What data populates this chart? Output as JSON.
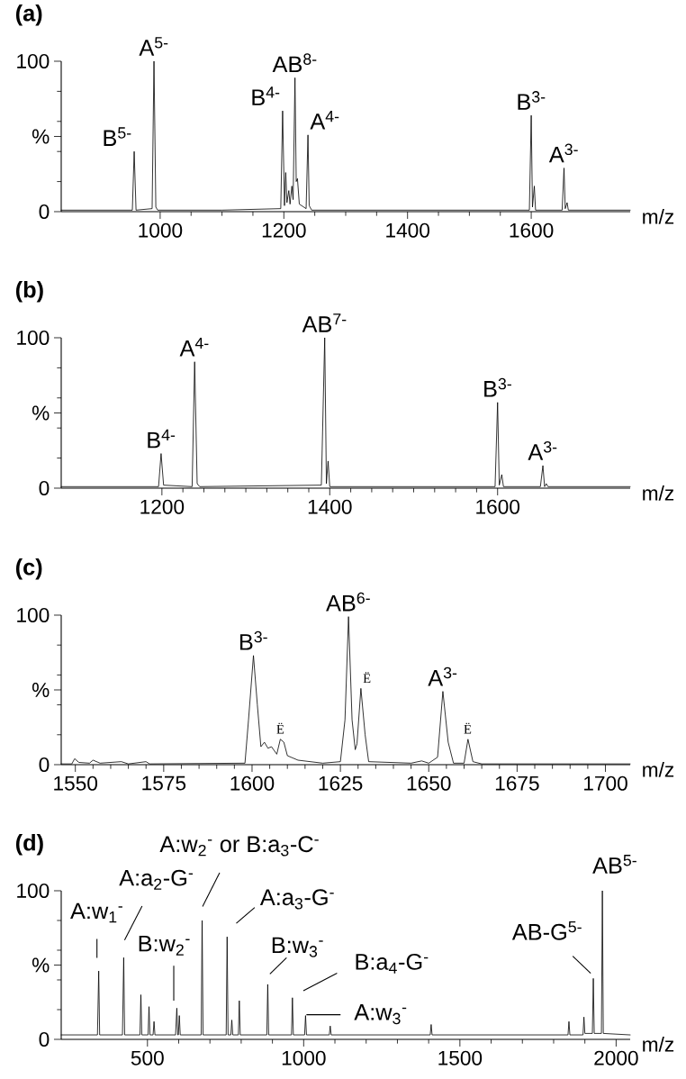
{
  "chart_data": [
    {
      "type": "line",
      "title": "(a)",
      "xlabel": "m/z",
      "color": "#000000",
      "x": [
        840,
        900,
        955,
        958,
        961,
        987,
        990,
        993,
        996,
        1100,
        1195,
        1198,
        1201,
        1203,
        1205,
        1208,
        1210,
        1213,
        1215,
        1218,
        1220,
        1222,
        1225,
        1236,
        1239,
        1241,
        1245,
        1400,
        1597,
        1600,
        1602,
        1605,
        1607,
        1650,
        1653,
        1655,
        1658,
        1660,
        1760
      ],
      "values": [
        1,
        1,
        1,
        40,
        1,
        2,
        100,
        3,
        1,
        1,
        2,
        67,
        4,
        26,
        6,
        14,
        5,
        17,
        8,
        89,
        20,
        22,
        5,
        2,
        51,
        4,
        1,
        1,
        1,
        64,
        3,
        17,
        1,
        1,
        29,
        2,
        6,
        1,
        1
      ],
      "xlim": [
        840,
        1760
      ],
      "ylim": [
        0,
        100
      ],
      "xticks": [
        1000,
        1200,
        1400,
        1600
      ],
      "yticks": [
        0,
        100
      ],
      "ylabel": "%",
      "annotations": [
        {
          "text": "B$^{5-}$",
          "x": 958,
          "y": 40
        },
        {
          "text": "A$^{5-}$",
          "x": 990,
          "y": 100
        },
        {
          "text": "B$^{4-}$",
          "x": 1198,
          "y": 67
        },
        {
          "text": "AB$^{8-}$",
          "x": 1218,
          "y": 89
        },
        {
          "text": "A$^{4-}$",
          "x": 1239,
          "y": 51
        },
        {
          "text": "B$^{3-}$",
          "x": 1600,
          "y": 64
        },
        {
          "text": "A$^{3-}$",
          "x": 1653,
          "y": 29
        }
      ]
    },
    {
      "type": "line",
      "title": "(b)",
      "xlabel": "m/z",
      "color": "#000000",
      "x": [
        1080,
        1196,
        1199,
        1202,
        1236,
        1239,
        1242,
        1245,
        1390,
        1394,
        1396,
        1398,
        1400,
        1597,
        1600,
        1602,
        1605,
        1607,
        1651,
        1654,
        1656,
        1658,
        1660,
        1758
      ],
      "values": [
        1,
        1,
        23,
        2,
        1,
        84,
        3,
        1,
        2,
        100,
        3,
        18,
        1,
        1,
        57,
        2,
        9,
        1,
        1,
        15,
        1,
        3,
        1,
        1
      ],
      "xlim": [
        1080,
        1758
      ],
      "ylim": [
        0,
        100
      ],
      "xticks": [
        1200,
        1400,
        1600
      ],
      "yticks": [
        0,
        100
      ],
      "ylabel": "%",
      "annotations": [
        {
          "text": "B$^{4-}$",
          "x": 1199,
          "y": 23
        },
        {
          "text": "A$^{4-}$",
          "x": 1239,
          "y": 84
        },
        {
          "text": "AB$^{7-}$",
          "x": 1394,
          "y": 100
        },
        {
          "text": "B$^{3-}$",
          "x": 1600,
          "y": 57
        },
        {
          "text": "A$^{3-}$",
          "x": 1654,
          "y": 15
        }
      ]
    },
    {
      "type": "line",
      "title": "(c)",
      "xlabel": "m/z",
      "color": "#000000",
      "x": [
        1546,
        1549,
        1549.8,
        1551,
        1554,
        1555,
        1557,
        1563,
        1565,
        1570,
        1571,
        1598,
        1599,
        1600.4,
        1601.5,
        1602.5,
        1603.5,
        1604.5,
        1605.5,
        1607,
        1608,
        1609,
        1610,
        1613,
        1620,
        1625,
        1626.3,
        1627.3,
        1628.3,
        1629.2,
        1629.7,
        1630.8,
        1632,
        1633,
        1645,
        1648,
        1650,
        1652.5,
        1654,
        1655.5,
        1657,
        1660,
        1661.1,
        1662.5,
        1665,
        1707
      ],
      "values": [
        0.5,
        0.5,
        4,
        1.5,
        1,
        3,
        1,
        2,
        0.5,
        2,
        0.5,
        1,
        30,
        73,
        40,
        12,
        15,
        11,
        12,
        7,
        17,
        15,
        6,
        3,
        1,
        2,
        30,
        99,
        30,
        10,
        14,
        51,
        20,
        2,
        1,
        2.5,
        1,
        5,
        49,
        15,
        1,
        1,
        17,
        2,
        0.5,
        0.5
      ],
      "xlim": [
        1546,
        1707
      ],
      "ylim": [
        0,
        100
      ],
      "xticks": [
        1550,
        1575,
        1600,
        1625,
        1650,
        1675,
        1700
      ],
      "yticks": [
        0,
        100
      ],
      "ylabel": "%",
      "annotations": [
        {
          "text": "B$^{3-}$",
          "x": 1600.4,
          "y": 73
        },
        {
          "text": "Ë",
          "x": 1608,
          "y": 17
        },
        {
          "text": "AB$^{6-}$",
          "x": 1627.3,
          "y": 99
        },
        {
          "text": "Ë",
          "x": 1630.8,
          "y": 51
        },
        {
          "text": "A$^{3-}$",
          "x": 1654,
          "y": 49
        },
        {
          "text": "Ë",
          "x": 1661,
          "y": 17
        }
      ]
    },
    {
      "type": "line",
      "title": "(d)",
      "xlabel": "m/z",
      "color": "#000000",
      "x": [
        224,
        340,
        344,
        347,
        420,
        424,
        427,
        476,
        479,
        482,
        502,
        505,
        508,
        518,
        521,
        524,
        590,
        594,
        597,
        599,
        602,
        605,
        672,
        675,
        678,
        752,
        755,
        758,
        767,
        770,
        773,
        791,
        794,
        797,
        882,
        885,
        888,
        961,
        964,
        967,
        1003,
        1006,
        1009,
        1082,
        1085,
        1088,
        1405,
        1408,
        1411,
        1846,
        1849,
        1852,
        1894,
        1897,
        1900,
        1924,
        1927,
        1930,
        1953,
        1956,
        1959,
        2045
      ],
      "values": [
        3,
        3,
        46,
        3,
        3,
        55,
        3,
        3,
        30,
        3,
        3,
        22,
        3,
        3,
        12,
        3,
        3,
        21,
        3,
        3,
        16,
        3,
        3,
        80,
        3,
        3,
        69,
        3,
        3,
        13,
        3,
        3,
        26,
        3,
        3,
        37,
        3,
        3,
        28,
        3,
        3,
        16,
        3,
        3,
        9,
        3,
        3,
        10,
        3,
        3,
        12,
        3,
        3,
        15,
        4,
        4,
        41,
        4,
        4,
        100,
        4,
        3
      ],
      "xlim": [
        224,
        2045
      ],
      "ylim": [
        0,
        100
      ],
      "xticks": [
        500,
        1000,
        1500,
        2000
      ],
      "yticks": [
        0,
        100
      ],
      "ylabel": "%",
      "annotations": [
        {
          "text": "A:w$_{1}$$^{-}$",
          "x": 344,
          "y": 46
        },
        {
          "text": "A:a$_{2}$-G$^{-}$",
          "x": 424,
          "y": 55
        },
        {
          "text": "A:w$_{2}$$^{-}$ or B:a$_{3}$-C$^{-}$",
          "x": 675,
          "y": 80
        },
        {
          "text": "A:a$_{3}$-G$^{-}$",
          "x": 755,
          "y": 69
        },
        {
          "text": "B:w$_{2}$$^{-}$",
          "x": 594,
          "y": 21
        },
        {
          "text": "B:w$_{3}$$^{-}$",
          "x": 885,
          "y": 37
        },
        {
          "text": "B:a$_{4}$-G$^{-}$",
          "x": 964,
          "y": 28
        },
        {
          "text": "A:w$_{3}$$^{-}$",
          "x": 1006,
          "y": 16
        },
        {
          "text": "AB-G$^{5-}$",
          "x": 1927,
          "y": 41
        },
        {
          "text": "AB$^{5-}$",
          "x": 1956,
          "y": 100
        }
      ]
    }
  ]
}
